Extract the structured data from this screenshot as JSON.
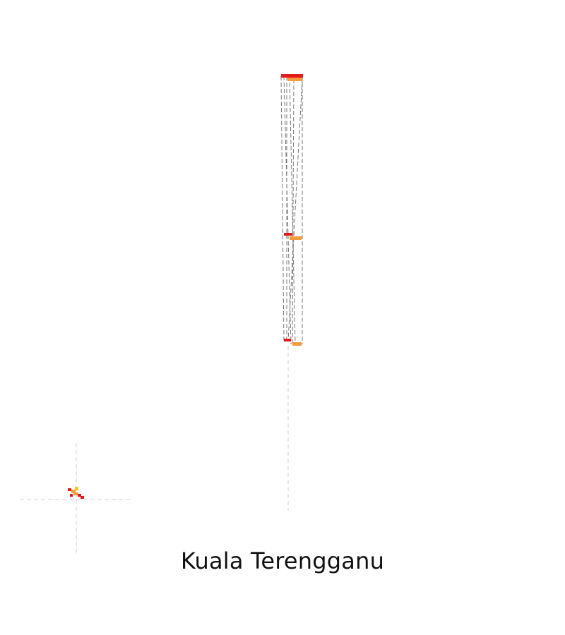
{
  "caption": "Kuala Terengganu",
  "colors": {
    "background": "#ffffff",
    "red": "#e41a1c",
    "orange": "#f39c3c",
    "yellow": "#f5c518",
    "dashed_line": "#777777",
    "crosshair": "#d0d0d0",
    "text": "#111111"
  }
}
